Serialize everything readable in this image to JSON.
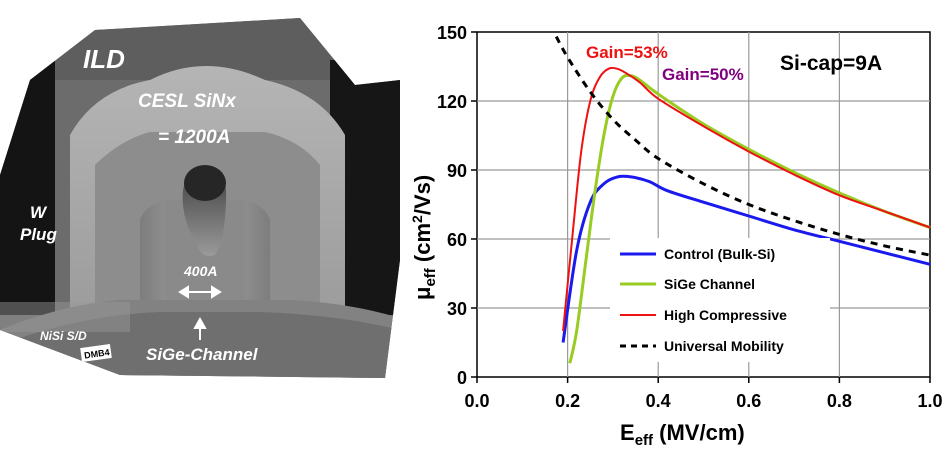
{
  "tem": {
    "ild": "ILD",
    "cesl_line1": "CESL SiNx",
    "cesl_line2": "= 1200A",
    "w_plug_line1": "W",
    "w_plug_line2": "Plug",
    "gate_width": "400A",
    "nisi": "NiSi S/D",
    "scale_tag": "DMB4",
    "sige_channel": "SiGe-Channel"
  },
  "colors": {
    "control": "#1a1aee",
    "sige": "#99cc22",
    "high_compressive": "#ee1111",
    "universal": "#000000",
    "gain53": "#ee1111",
    "gain50": "#800080"
  },
  "chart_data": {
    "type": "line",
    "xlabel_main": "E",
    "xlabel_sub": "eff",
    "xlabel_rest": " (MV/cm)",
    "ylabel_main": "μ",
    "ylabel_sub": "eff",
    "ylabel_rest": " (cm",
    "ylabel_sup": "2",
    "ylabel_end": "/Vs)",
    "xlim": [
      0.0,
      1.0
    ],
    "ylim": [
      0,
      150
    ],
    "xticks": [
      "0.0",
      "0.2",
      "0.4",
      "0.6",
      "0.8",
      "1.0"
    ],
    "yticks": [
      "0",
      "30",
      "60",
      "90",
      "120",
      "150"
    ],
    "grid": true,
    "annotations": {
      "si_cap": "Si-cap=9A",
      "gain53": "Gain=53%",
      "gain50": "Gain=50%"
    },
    "series": [
      {
        "name": "Control (Bulk-Si)",
        "key": "control",
        "style": "solid",
        "x": [
          0.19,
          0.22,
          0.25,
          0.28,
          0.31,
          0.34,
          0.38,
          0.42,
          0.5,
          0.6,
          0.7,
          0.8,
          0.9,
          1.0
        ],
        "y": [
          15,
          55,
          76,
          84,
          87,
          87,
          85,
          81,
          76,
          70,
          64,
          59,
          54,
          49
        ]
      },
      {
        "name": "SiGe Channel",
        "key": "sige",
        "style": "solid",
        "x": [
          0.205,
          0.22,
          0.24,
          0.26,
          0.28,
          0.3,
          0.32,
          0.34,
          0.36,
          0.4,
          0.5,
          0.6,
          0.7,
          0.8,
          0.9,
          1.0
        ],
        "y": [
          6,
          20,
          50,
          80,
          105,
          122,
          130,
          131,
          129,
          123,
          110,
          99,
          89,
          80,
          72,
          65
        ]
      },
      {
        "name": "High Compressive",
        "key": "high_compressive",
        "style": "solid",
        "x": [
          0.19,
          0.21,
          0.23,
          0.25,
          0.27,
          0.29,
          0.31,
          0.33,
          0.36,
          0.4,
          0.5,
          0.6,
          0.7,
          0.8,
          0.9,
          1.0
        ],
        "y": [
          20,
          60,
          98,
          120,
          130,
          134,
          134,
          132,
          128,
          121,
          109,
          98,
          88,
          79,
          72,
          65
        ]
      },
      {
        "name": "Universal Mobility",
        "key": "universal",
        "style": "dashed",
        "x": [
          0.175,
          0.2,
          0.25,
          0.3,
          0.35,
          0.4,
          0.5,
          0.6,
          0.7,
          0.8,
          0.9,
          1.0
        ],
        "y": [
          148,
          139,
          124,
          112,
          103,
          95,
          84,
          75,
          68,
          62,
          57,
          53
        ]
      }
    ]
  }
}
